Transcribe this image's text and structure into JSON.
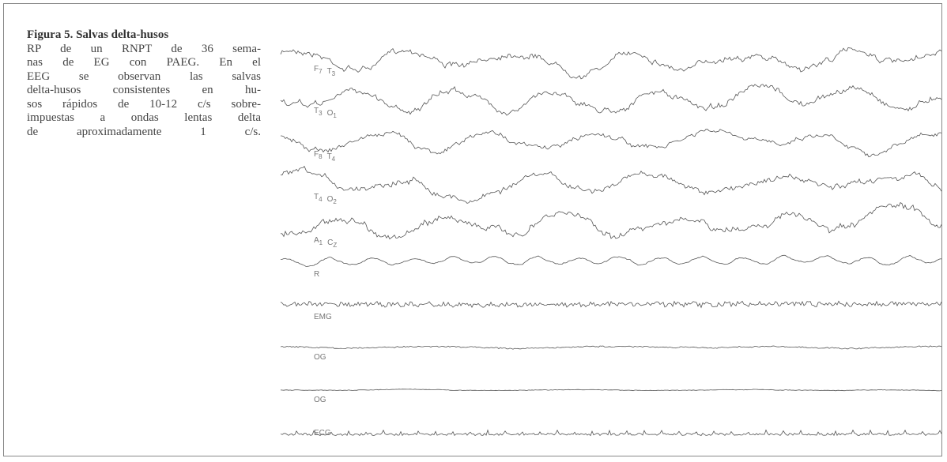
{
  "figure": {
    "title": "Figura 5. Salvas delta-husos",
    "caption_lines": [
      "RP de un RNPT de 36 sema-",
      "nas de EG con PAEG. En el",
      "EEG se observan las salvas",
      "delta-husos consistentes en hu-",
      "sos rápidos de 10-12 c/s sobre-",
      "impuestas a ondas lentas delta",
      "de aproximadamente 1 c/s."
    ],
    "channels": [
      {
        "electrodes": [
          {
            "letter": "F",
            "sub": "7"
          },
          {
            "letter": "T",
            "sub": "3"
          }
        ]
      },
      {
        "electrodes": [
          {
            "letter": "T",
            "sub": "3"
          },
          {
            "letter": "O",
            "sub": "1"
          }
        ]
      },
      {
        "electrodes": [
          {
            "letter": "F",
            "sub": "8"
          },
          {
            "letter": "T",
            "sub": "4"
          }
        ]
      },
      {
        "electrodes": [
          {
            "letter": "T",
            "sub": "4"
          },
          {
            "letter": "O",
            "sub": "2"
          }
        ]
      },
      {
        "electrodes": [
          {
            "letter": "A",
            "sub": "1"
          },
          {
            "letter": "C",
            "sub": "Z"
          }
        ]
      },
      {
        "electrodes": [
          {
            "letter": "R",
            "sub": ""
          }
        ]
      },
      {
        "electrodes": [
          {
            "letter": "EMG",
            "sub": ""
          }
        ]
      },
      {
        "electrodes": [
          {
            "letter": "OG",
            "sub": ""
          }
        ]
      },
      {
        "electrodes": [
          {
            "letter": "OG",
            "sub": ""
          }
        ]
      },
      {
        "electrodes": [
          {
            "letter": "ECG",
            "sub": ""
          }
        ]
      }
    ]
  }
}
